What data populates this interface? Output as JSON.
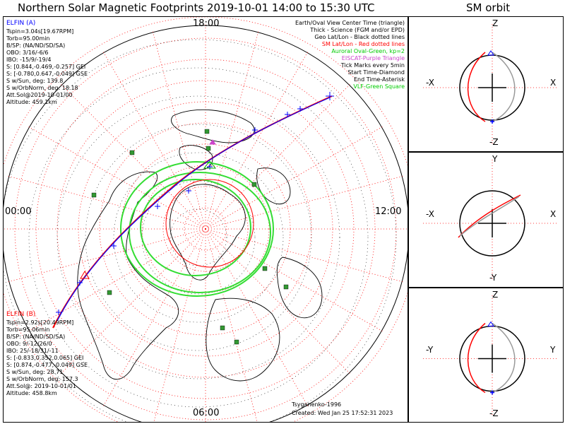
{
  "title": "Northern Solar Magnetic Footprints 2019-10-01 14:00 to 15:30 UTC",
  "orbit_title": "SM orbit",
  "mlt_labels": {
    "top": "18:00",
    "left": "00:00",
    "right": "12:00",
    "bottom": "06:00"
  },
  "sat_a": {
    "name": "ELFIN (A)",
    "lines": [
      "Tspin=3.04s[19.67RPM]",
      "Torb=95.00min",
      "B/SP: (NA/ND/SD/SA)",
      "OBO: 3/16/-6/6",
      "IBO: -15/9/-19/4",
      "S: [0.844,-0.469,-0.257] GEI",
      "S: [-0.780,0.647,-0.049] GSE",
      "S w/Sun, deg: 139.8",
      "S w/OrbNorm, deg: 18.18",
      "Att.Sol@2019-10-01/00",
      "Altitude: 459.1km"
    ]
  },
  "sat_b": {
    "name": "ELFIN (B)",
    "lines": [
      "Tspin=2.92s[20.49RPM]",
      "Torb=95.06min",
      "B/SP: (NA/ND/SD/SA)",
      "OBO: 9/-12/26/0",
      "IBO: 25/-18/31/-11",
      "S: [-0.833,0.352,0.065] GEI",
      "S: [0.874,-0.477,-0.049] GSE",
      "S w/Sun, deg: 28.71",
      "S w/OrbNorm, deg: 157.3",
      "Att.Sol@: 2019-10-01/01",
      "Altitude: 458.8km"
    ]
  },
  "legend": [
    {
      "text": "Earth/Oval View Center Time (triangle)",
      "color": "#000000"
    },
    {
      "text": "Thick - Science (FGM and/or EPD)",
      "color": "#000000"
    },
    {
      "text": "Geo Lat/Lon - Black dotted lines",
      "color": "#000000"
    },
    {
      "text": "SM Lat/Lon - Red dotted lines",
      "color": "#ff0000"
    },
    {
      "text": "Auroral Oval-Green, kp=2",
      "color": "#00cc00"
    },
    {
      "text": "EISCAT-Purple Triangle",
      "color": "#cc44cc"
    },
    {
      "text": "Tick Marks every 5min",
      "color": "#000000"
    },
    {
      "text": "Start Time-Diamond",
      "color": "#000000"
    },
    {
      "text": "End Time-Asterisk",
      "color": "#000000"
    },
    {
      "text": "VLF-Green Square",
      "color": "#00cc00"
    }
  ],
  "footer": {
    "model": "Tsyganenko-1996",
    "created": "Created: Wed Jan 25 17:52:31 2023"
  },
  "orbit_panels": [
    {
      "top": "Z",
      "bottom": "-Z",
      "left": "-X",
      "right": "X"
    },
    {
      "top": "Y",
      "bottom": "-Y",
      "left": "-X",
      "right": "X"
    },
    {
      "top": "Z",
      "bottom": "-Z",
      "left": "-Y",
      "right": "Y"
    }
  ],
  "chart_data": {
    "type": "scatter",
    "projection": "polar stereographic, north magnetic pole centered",
    "series": [
      {
        "name": "ELFIN (A)",
        "color": "#0000ff"
      },
      {
        "name": "ELFIN (B)",
        "color": "#ff0000"
      }
    ]
  }
}
